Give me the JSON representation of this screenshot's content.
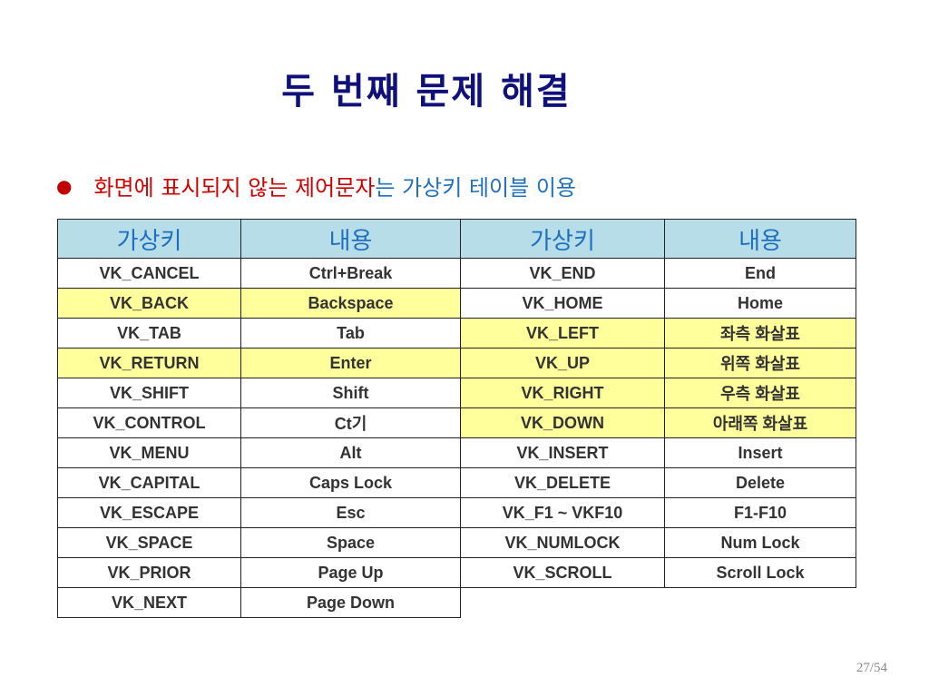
{
  "title": "두 번째 문제 해결",
  "bullet": {
    "red_text": "화면에 표시되지 않는 제어문자",
    "blue_text": "는 가상키 테이블 이용"
  },
  "colors": {
    "header_bg": "#b7dee8",
    "highlight": "#ffff9c",
    "red": "#d00000",
    "blue": "#1f70c0"
  },
  "table": {
    "headers": [
      "가상키",
      "내용",
      "가상키",
      "내용"
    ],
    "rows": [
      {
        "cells": [
          "VK_CANCEL",
          "Ctrl+Break",
          "VK_END",
          "End"
        ],
        "hl": [
          false,
          false,
          false,
          false
        ]
      },
      {
        "cells": [
          "VK_BACK",
          "Backspace",
          "VK_HOME",
          "Home"
        ],
        "hl": [
          true,
          true,
          false,
          false
        ]
      },
      {
        "cells": [
          "VK_TAB",
          "Tab",
          "VK_LEFT",
          "좌측 화살표"
        ],
        "hl": [
          false,
          false,
          true,
          true
        ]
      },
      {
        "cells": [
          "VK_RETURN",
          "Enter",
          "VK_UP",
          "위쪽 화살표"
        ],
        "hl": [
          true,
          true,
          true,
          true
        ]
      },
      {
        "cells": [
          "VK_SHIFT",
          "Shift",
          "VK_RIGHT",
          "우측 화살표"
        ],
        "hl": [
          false,
          false,
          true,
          true
        ]
      },
      {
        "cells": [
          "VK_CONTROL",
          "Ct기",
          "VK_DOWN",
          "아래쪽 화살표"
        ],
        "hl": [
          false,
          false,
          true,
          true
        ]
      },
      {
        "cells": [
          "VK_MENU",
          "Alt",
          "VK_INSERT",
          "Insert"
        ],
        "hl": [
          false,
          false,
          false,
          false
        ]
      },
      {
        "cells": [
          "VK_CAPITAL",
          "Caps Lock",
          "VK_DELETE",
          "Delete"
        ],
        "hl": [
          false,
          false,
          false,
          false
        ]
      },
      {
        "cells": [
          "VK_ESCAPE",
          "Esc",
          "VK_F1 ~ VKF10",
          "F1-F10"
        ],
        "hl": [
          false,
          false,
          false,
          false
        ]
      },
      {
        "cells": [
          "VK_SPACE",
          "Space",
          "VK_NUMLOCK",
          "Num Lock"
        ],
        "hl": [
          false,
          false,
          false,
          false
        ]
      },
      {
        "cells": [
          "VK_PRIOR",
          "Page Up",
          "VK_SCROLL",
          "Scroll Lock"
        ],
        "hl": [
          false,
          false,
          false,
          false
        ]
      },
      {
        "cells": [
          "VK_NEXT",
          "Page Down"
        ],
        "hl": [
          false,
          false
        ]
      }
    ]
  },
  "page_number": "27/54"
}
